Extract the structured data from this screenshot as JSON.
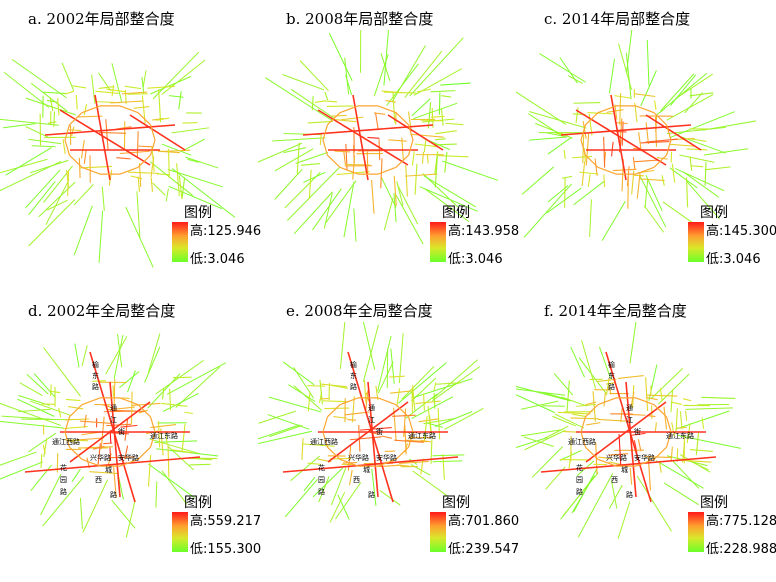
{
  "panels": [
    {
      "title": "a. 2002年局部整合度",
      "legend_title": "图例",
      "high": "高:125.946",
      "low": "低:3.046",
      "type": "local"
    },
    {
      "title": "b. 2008年局部整合度",
      "legend_title": "图例",
      "high": "高:143.958",
      "low": "低:3.046",
      "type": "local"
    },
    {
      "title": "c. 2014年局部整合度",
      "legend_title": "图例",
      "high": "高:145.300",
      "low": "低:3.046",
      "type": "local"
    },
    {
      "title": "d. 2002年全局整合度",
      "legend_title": "图例",
      "high": "高:559.217",
      "low": "低:155.300",
      "type": "global"
    },
    {
      "title": "e. 2008年全局整合度",
      "legend_title": "图例",
      "high": "高:701.860",
      "low": "低:239.547",
      "type": "global"
    },
    {
      "title": "f. 2014年全局整合度",
      "legend_title": "图例",
      "high": "高:775.128",
      "low": "低:228.988",
      "type": "global"
    }
  ],
  "street_labels": [
    "榆",
    "东",
    "路",
    "通",
    "江",
    "街",
    "通江西路",
    "兴华路",
    "安华路",
    "通江东路",
    "花",
    "园",
    "路",
    "西",
    "城",
    "路"
  ],
  "colors": {
    "high": "#ff1a1a",
    "mid": "#ffa030",
    "low": "#6cff2a"
  }
}
